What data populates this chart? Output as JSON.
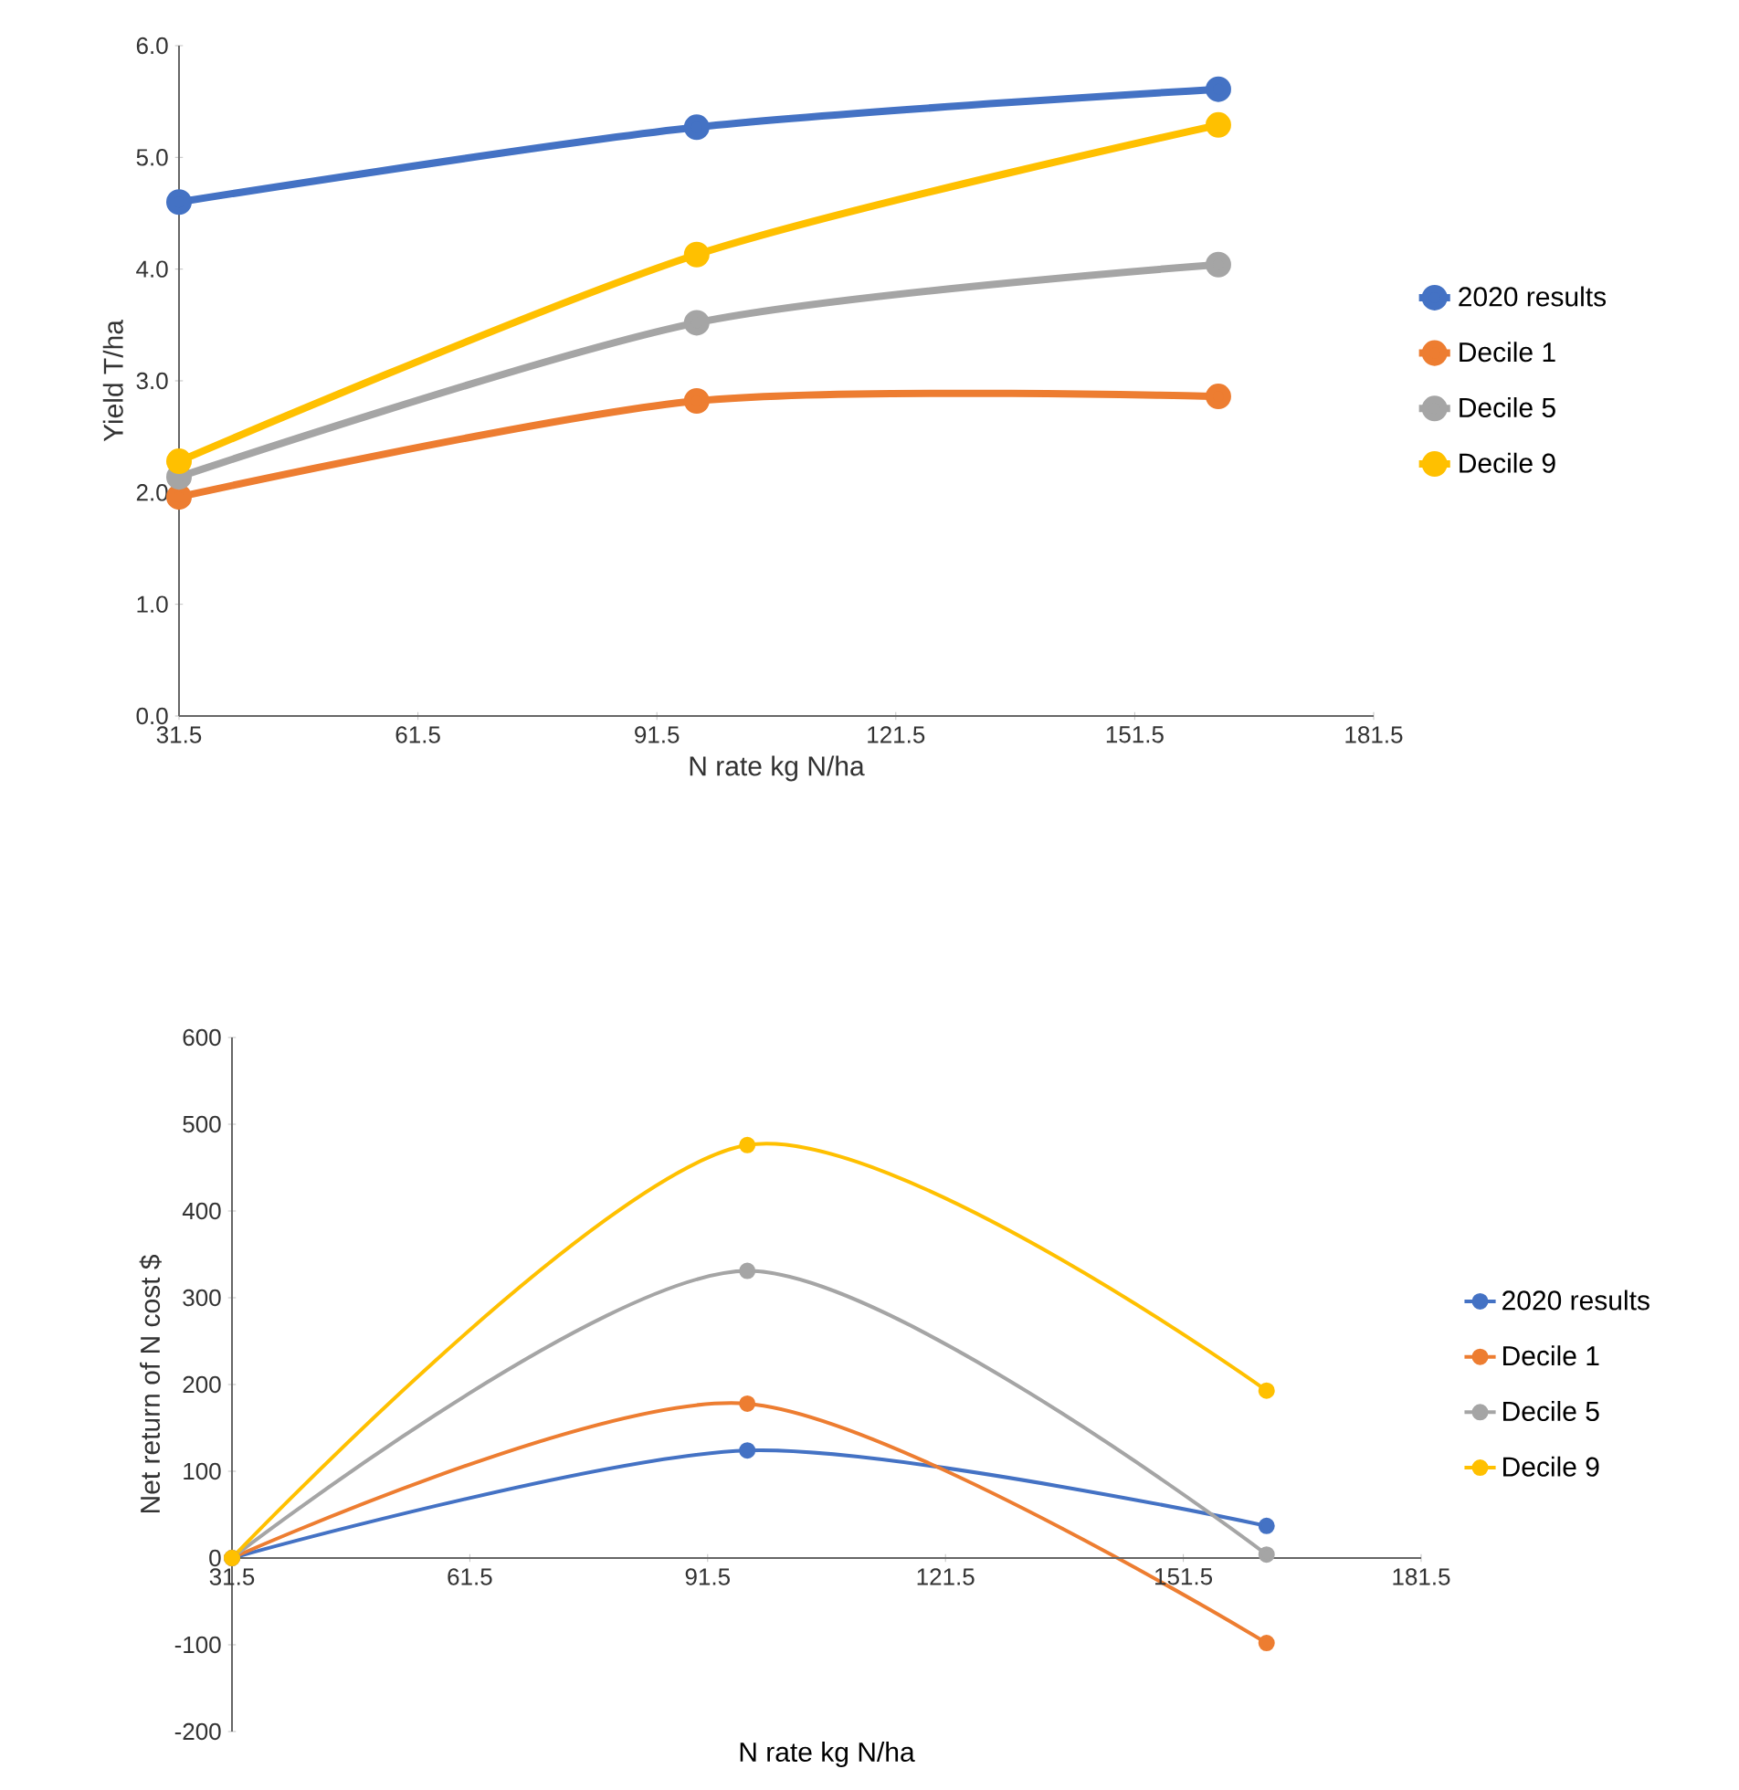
{
  "chart_data": [
    {
      "type": "line",
      "xlabel": "N rate kg N/ha",
      "ylabel": "Yield T/ha",
      "x": [
        31.5,
        96.5,
        162
      ],
      "xlim": [
        31.5,
        181.5
      ],
      "xticks": [
        31.5,
        61.5,
        91.5,
        121.5,
        151.5,
        181.5
      ],
      "ylim": [
        0,
        6
      ],
      "yticks": [
        {
          "value": 0,
          "label": "0.0"
        },
        {
          "value": 1,
          "label": "1.0"
        },
        {
          "value": 2,
          "label": "2.0"
        },
        {
          "value": 3,
          "label": "3.0"
        },
        {
          "value": 4,
          "label": "4.0"
        },
        {
          "value": 5,
          "label": "5.0"
        },
        {
          "value": 6,
          "label": "6.0"
        }
      ],
      "legend": "right",
      "marker": "circle",
      "grid": false,
      "series": [
        {
          "name": "2020 results",
          "color": "#4472c4",
          "values": [
            4.6,
            5.27,
            5.61
          ]
        },
        {
          "name": "Decile 1",
          "color": "#ed7d31",
          "values": [
            1.96,
            2.82,
            2.86
          ]
        },
        {
          "name": "Decile 5",
          "color": "#a5a5a5",
          "values": [
            2.14,
            3.52,
            4.04
          ]
        },
        {
          "name": "Decile 9",
          "color": "#ffc000",
          "values": [
            2.28,
            4.13,
            5.29
          ]
        }
      ]
    },
    {
      "type": "line",
      "xlabel": "N rate kg N/ha",
      "ylabel": "Net return of N cost $",
      "x": [
        31.5,
        96.5,
        162
      ],
      "xlim": [
        31.5,
        181.5
      ],
      "xticks": [
        31.5,
        61.5,
        91.5,
        121.5,
        151.5,
        181.5
      ],
      "ylim": [
        -200,
        600
      ],
      "yticks": [
        -200,
        -100,
        0,
        100,
        200,
        300,
        400,
        500,
        600
      ],
      "legend": "right",
      "marker": "circle",
      "grid": false,
      "series": [
        {
          "name": "2020 results",
          "color": "#4472c4",
          "values": [
            0,
            124,
            37
          ]
        },
        {
          "name": "Decile 1",
          "color": "#ed7d31",
          "values": [
            0,
            178,
            -98
          ]
        },
        {
          "name": "Decile 5",
          "color": "#a5a5a5",
          "values": [
            0,
            331,
            4
          ]
        },
        {
          "name": "Decile 9",
          "color": "#ffc000",
          "values": [
            0,
            476,
            193
          ]
        }
      ]
    }
  ]
}
